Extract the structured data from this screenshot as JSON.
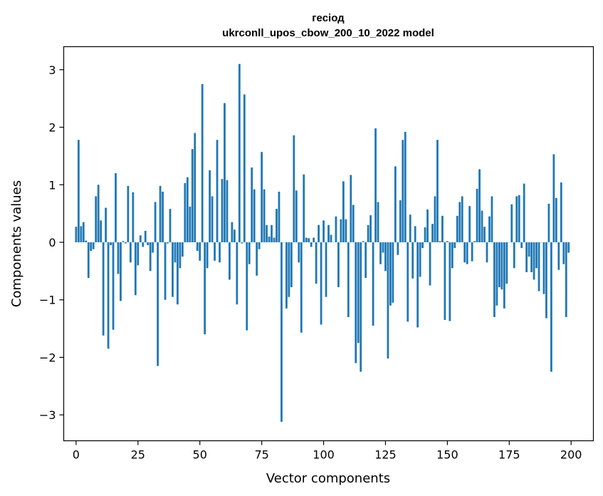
{
  "chart_data": {
    "type": "bar",
    "title": "гесіод",
    "subtitle": "ukrconll_upos_cbow_200_10_2022 model",
    "xlabel": "Vector components",
    "ylabel": "Components values",
    "xlim": [
      -5,
      209
    ],
    "ylim": [
      -3.45,
      3.4
    ],
    "xticks": [
      0,
      25,
      50,
      75,
      100,
      125,
      150,
      175,
      200
    ],
    "yticks": [
      -3,
      -2,
      -1,
      0,
      1,
      2,
      3
    ],
    "ytick_labels": [
      "−3",
      "−2",
      "−1",
      "0",
      "1",
      "2",
      "3"
    ],
    "bar_color": "#1f77b4",
    "grid": false,
    "legend": "none",
    "x": [
      0,
      1,
      2,
      3,
      4,
      5,
      6,
      7,
      8,
      9,
      10,
      11,
      12,
      13,
      14,
      15,
      16,
      17,
      18,
      19,
      20,
      21,
      22,
      23,
      24,
      25,
      26,
      27,
      28,
      29,
      30,
      31,
      32,
      33,
      34,
      35,
      36,
      37,
      38,
      39,
      40,
      41,
      42,
      43,
      44,
      45,
      46,
      47,
      48,
      49,
      50,
      51,
      52,
      53,
      54,
      55,
      56,
      57,
      58,
      59,
      60,
      61,
      62,
      63,
      64,
      65,
      66,
      67,
      68,
      69,
      70,
      71,
      72,
      73,
      74,
      75,
      76,
      77,
      78,
      79,
      80,
      81,
      82,
      83,
      84,
      85,
      86,
      87,
      88,
      89,
      90,
      91,
      92,
      93,
      94,
      95,
      96,
      97,
      98,
      99,
      100,
      101,
      102,
      103,
      104,
      105,
      106,
      107,
      108,
      109,
      110,
      111,
      112,
      113,
      114,
      115,
      116,
      117,
      118,
      119,
      120,
      121,
      122,
      123,
      124,
      125,
      126,
      127,
      128,
      129,
      130,
      131,
      132,
      133,
      134,
      135,
      136,
      137,
      138,
      139,
      140,
      141,
      142,
      143,
      144,
      145,
      146,
      147,
      148,
      149,
      150,
      151,
      152,
      153,
      154,
      155,
      156,
      157,
      158,
      159,
      160,
      161,
      162,
      163,
      164,
      165,
      166,
      167,
      168,
      169,
      170,
      171,
      172,
      173,
      174,
      175,
      176,
      177,
      178,
      179,
      180,
      181,
      182,
      183,
      184,
      185,
      186,
      187,
      188,
      189,
      190,
      191,
      192,
      193,
      194,
      195,
      196,
      197,
      198,
      199
    ],
    "values": [
      0.27,
      1.78,
      0.28,
      0.35,
      0.03,
      -0.62,
      -0.15,
      -0.12,
      0.8,
      1.0,
      0.38,
      -1.62,
      0.6,
      -1.85,
      -0.05,
      -1.52,
      1.2,
      -0.55,
      -1.02,
      0.02,
      -0.02,
      0.98,
      -0.35,
      0.87,
      -0.92,
      -0.4,
      0.12,
      -0.08,
      0.2,
      -0.05,
      -0.5,
      -0.18,
      0.7,
      -2.15,
      0.98,
      0.88,
      -1.0,
      -0.02,
      0.58,
      -0.95,
      -0.35,
      -1.08,
      -0.45,
      -0.25,
      1.03,
      1.13,
      0.62,
      1.62,
      1.9,
      -0.15,
      -0.32,
      2.75,
      -1.6,
      -0.45,
      1.25,
      0.8,
      -0.32,
      1.78,
      -0.35,
      1.1,
      2.42,
      1.08,
      -0.65,
      0.35,
      0.22,
      -1.08,
      3.1,
      -0.02,
      2.57,
      -1.53,
      -0.38,
      1.3,
      0.92,
      -0.58,
      -0.12,
      1.57,
      0.92,
      0.3,
      0.1,
      0.3,
      0.08,
      0.58,
      0.88,
      -3.12,
      0.0,
      -1.15,
      -0.95,
      -0.78,
      1.86,
      0.9,
      -0.35,
      -1.57,
      1.18,
      0.08,
      0.07,
      -0.08,
      0.08,
      -0.72,
      0.3,
      -1.43,
      0.38,
      -0.95,
      0.3,
      0.13,
      0.0,
      0.45,
      -0.78,
      0.4,
      1.06,
      0.4,
      -1.3,
      1.17,
      0.65,
      -2.1,
      -1.75,
      -2.25,
      0.02,
      -0.62,
      0.3,
      0.47,
      -1.45,
      1.98,
      0.7,
      -0.38,
      -0.18,
      -0.5,
      -2.02,
      -1.1,
      -1.05,
      1.32,
      -0.22,
      0.73,
      1.78,
      1.92,
      -1.38,
      0.48,
      -0.63,
      0.28,
      -1.48,
      -0.6,
      -0.1,
      0.26,
      0.57,
      -0.75,
      0.32,
      0.8,
      1.78,
      0.02,
      0.46,
      -1.35,
      0.02,
      -1.37,
      -0.45,
      -0.1,
      0.46,
      0.7,
      0.8,
      -0.35,
      -0.38,
      0.63,
      -0.33,
      0.02,
      0.93,
      1.27,
      0.55,
      0.27,
      -0.35,
      0.45,
      0.8,
      -1.3,
      -1.1,
      -0.78,
      -0.82,
      -1.15,
      -0.72,
      0.0,
      0.66,
      -0.45,
      0.8,
      0.82,
      -0.1,
      1.02,
      -0.52,
      -0.25,
      -0.52,
      -0.65,
      -0.45,
      -0.85,
      0.0,
      -0.9,
      -1.32,
      0.67,
      -2.25,
      1.53,
      0.77,
      -0.48,
      1.04,
      -0.38,
      -1.3,
      -0.18
    ]
  }
}
